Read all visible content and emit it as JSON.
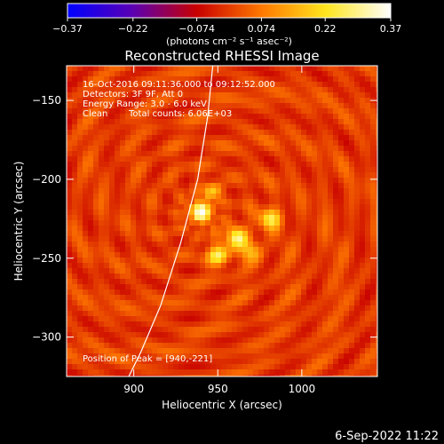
{
  "chart_data": {
    "type": "heatmap",
    "title": "Reconstructed RHESSI Image",
    "xlabel": "Heliocentric X (arcsec)",
    "ylabel": "Heliocentric Y (arcsec)",
    "xlim": [
      860,
      1045
    ],
    "ylim": [
      -325,
      -128
    ],
    "x_ticks": [
      900,
      950,
      1000
    ],
    "y_ticks": [
      -150,
      -200,
      -250,
      -300
    ],
    "x_tick_labels": [
      "900",
      "950",
      "1000"
    ],
    "y_tick_labels": [
      "−150",
      "−200",
      "−250",
      "−300"
    ],
    "colorbar": {
      "range": [
        -0.37,
        0.37
      ],
      "ticks": [
        -0.37,
        -0.22,
        -0.074,
        0.074,
        0.22,
        0.37
      ],
      "tick_labels": [
        "−0.37",
        "−0.22",
        "−0.074",
        "0.074",
        "0.22",
        "0.37"
      ],
      "unit_label": "(photons cm⁻² s⁻¹ asec⁻²)",
      "colormap": [
        "#0000ff",
        "#5a00b4",
        "#c80000",
        "#ff7800",
        "#ffe61e",
        "#ffffff"
      ]
    },
    "annotations": {
      "time": "16-Oct-2016 09:11:36.000 to 09:12:52.000",
      "detectors": "Detectors: 3F 9F, Att 0",
      "energy": "Energy Range: 3.0 - 6.0 keV",
      "algorithm": "Clean",
      "total_counts": "Total counts: 6.06E+03",
      "peak": "Position of Peak = [940,-221]"
    },
    "peak": {
      "x": 940,
      "y": -221
    },
    "sources": [
      {
        "x": 940,
        "y": -221,
        "value": 0.37
      },
      {
        "x": 961,
        "y": -237,
        "value": 0.29
      },
      {
        "x": 950,
        "y": -248,
        "value": 0.25
      },
      {
        "x": 981,
        "y": -225,
        "value": 0.24
      },
      {
        "x": 970,
        "y": -246,
        "value": 0.16
      },
      {
        "x": 946,
        "y": -208,
        "value": 0.13
      }
    ],
    "limb_curve": [
      [
        947,
        -128
      ],
      [
        944,
        -160
      ],
      [
        938,
        -200
      ],
      [
        928,
        -240
      ],
      [
        916,
        -280
      ],
      [
        904,
        -310
      ],
      [
        897,
        -325
      ]
    ]
  },
  "footer": {
    "datestamp": "6-Sep-2022 11:22"
  }
}
